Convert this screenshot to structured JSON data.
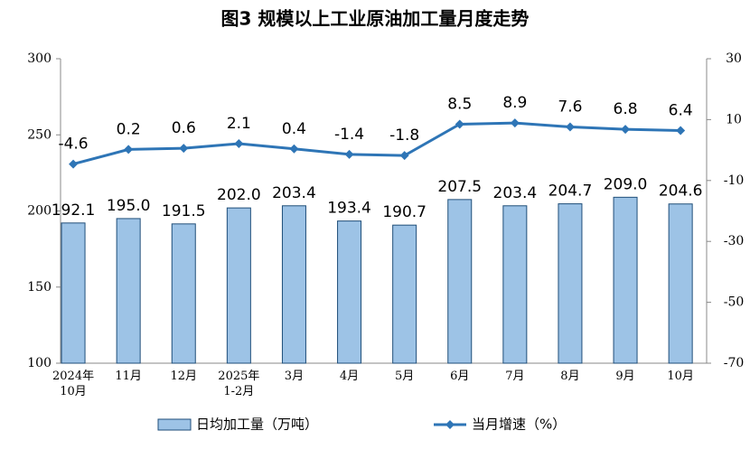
{
  "chart_data": {
    "type": "bar-line",
    "title": "图3  规模以上工业原油加工量月度走势",
    "categories": [
      "2024年\n10月",
      "11月",
      "12月",
      "2025年\n1-2月",
      "3月",
      "4月",
      "5月",
      "6月",
      "7月",
      "8月",
      "9月",
      "10月"
    ],
    "series": [
      {
        "name": "日均加工量（万吨）",
        "type": "bar",
        "color": "#9dc3e6",
        "values": [
          192.1,
          195.0,
          191.5,
          202.0,
          203.4,
          193.4,
          190.7,
          207.5,
          203.4,
          204.7,
          209.0,
          204.6
        ],
        "value_labels": [
          "192.1",
          "195.0",
          "191.5",
          "202.0",
          "203.4",
          "193.4",
          "190.7",
          "207.5",
          "203.4",
          "204.7",
          "209.0",
          "204.6"
        ]
      },
      {
        "name": "当月增速（%）",
        "type": "line",
        "axis": "y2",
        "color": "#2e75b6",
        "values": [
          -4.6,
          0.2,
          0.6,
          2.1,
          0.4,
          -1.4,
          -1.8,
          8.5,
          8.9,
          7.6,
          6.8,
          6.4
        ]
      }
    ],
    "ylim": [
      100,
      300
    ],
    "yticks": [
      100,
      150,
      200,
      250,
      300
    ],
    "y2lim": [
      -70,
      30
    ],
    "y2ticks": [
      -70,
      -50,
      -30,
      -10,
      10,
      30
    ],
    "grid": false
  }
}
